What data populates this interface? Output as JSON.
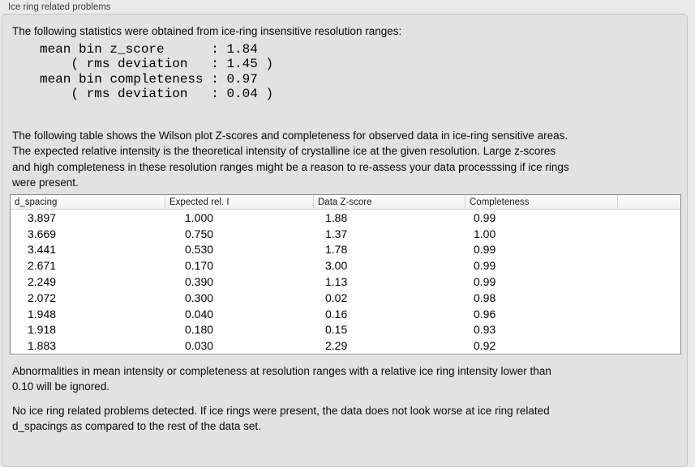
{
  "panel": {
    "title": "Ice ring related problems"
  },
  "intro": "The following statistics were obtained from ice-ring insensitive resolution ranges:",
  "stats_text": "mean bin z_score      : 1.84\n    ( rms deviation   : 1.45 )\nmean bin completeness : 0.97\n    ( rms deviation   : 0.04 )",
  "stats": {
    "mean_bin_z_score": "1.84",
    "z_score_rms_deviation": "1.45",
    "mean_bin_completeness": "0.97",
    "completeness_rms_deviation": "0.04"
  },
  "description": "The following table shows the Wilson plot Z-scores and completeness for observed data in ice-ring sensitive areas.\nThe expected relative intensity is the theoretical intensity of crystalline ice at the given resolution. Large z-scores\nand high completeness in these resolution ranges might be a reason to re-assess your data processsing if ice rings\nwere present.",
  "table": {
    "columns": [
      "d_spacing",
      "Expected rel. I",
      "Data Z-score",
      "Completeness",
      ""
    ],
    "rows": [
      [
        "3.897",
        "1.000",
        "1.88",
        "0.99"
      ],
      [
        "3.669",
        "0.750",
        "1.37",
        "1.00"
      ],
      [
        "3.441",
        "0.530",
        "1.78",
        "0.99"
      ],
      [
        "2.671",
        "0.170",
        "3.00",
        "0.99"
      ],
      [
        "2.249",
        "0.390",
        "1.13",
        "0.99"
      ],
      [
        "2.072",
        "0.300",
        "0.02",
        "0.98"
      ],
      [
        "1.948",
        "0.040",
        "0.16",
        "0.96"
      ],
      [
        "1.918",
        "0.180",
        "0.15",
        "0.93"
      ],
      [
        "1.883",
        "0.030",
        "2.29",
        "0.92"
      ]
    ]
  },
  "note": "Abnormalities in mean intensity or completeness at resolution ranges with a relative ice ring intensity lower than\n0.10 will be ignored.",
  "conclusion": "No ice ring related problems detected. If ice rings were present, the data does not look worse at ice ring related\nd_spacings as compared to the rest of the data set."
}
